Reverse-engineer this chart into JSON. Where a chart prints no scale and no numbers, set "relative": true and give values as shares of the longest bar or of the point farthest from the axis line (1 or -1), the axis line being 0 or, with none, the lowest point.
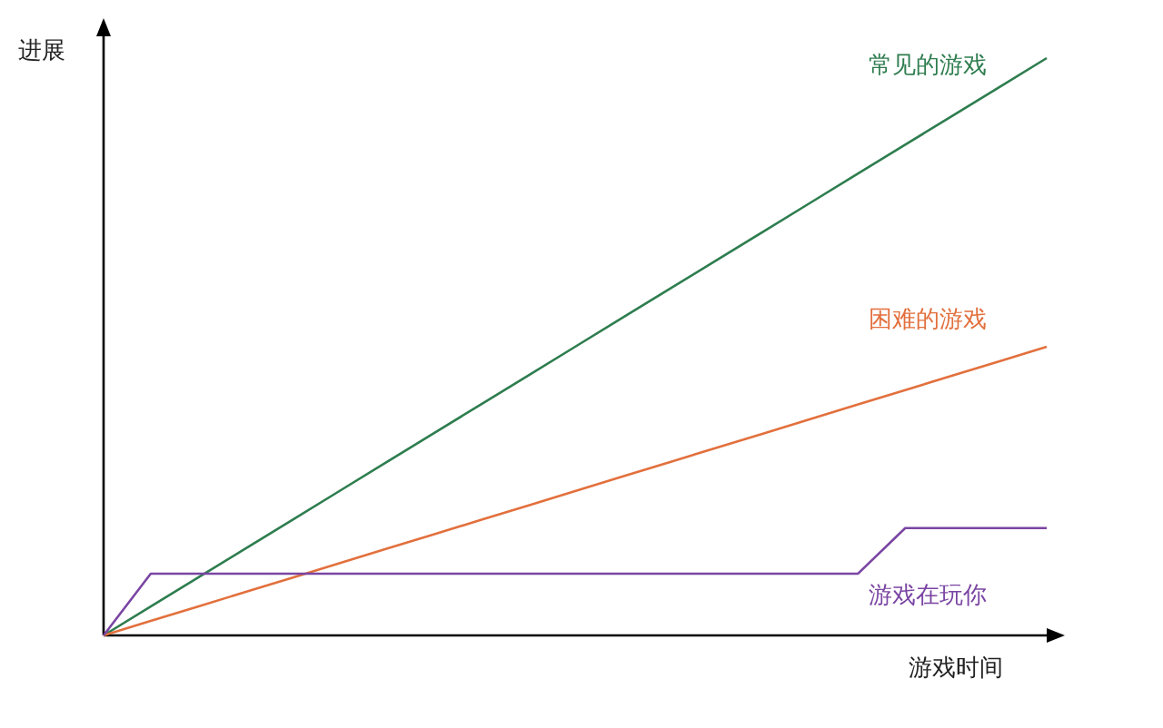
{
  "chart_data": {
    "type": "line",
    "relative": true,
    "xlabel": "游戏时间",
    "ylabel": "进展",
    "categories": [
      null,
      null,
      null,
      null,
      null,
      null,
      null,
      null,
      null,
      null,
      null,
      null,
      null,
      null,
      null,
      null,
      null,
      null,
      null,
      null,
      null
    ],
    "series": [
      {
        "name": "常见的游戏",
        "color": "#2e7d4f",
        "values": [
          0,
          0.05,
          0.1,
          0.15,
          0.2,
          0.25,
          0.3,
          0.35,
          0.4,
          0.45,
          0.5,
          0.55,
          0.6,
          0.65,
          0.7,
          0.75,
          0.8,
          0.85,
          0.9,
          0.95,
          1
        ]
      },
      {
        "name": "困难的游戏",
        "color": "#e2703d",
        "values": [
          0,
          0.025,
          0.05,
          0.075,
          0.1,
          0.125,
          0.15,
          0.175,
          0.2,
          0.225,
          0.25,
          0.275,
          0.3,
          0.325,
          0.35,
          0.375,
          0.4,
          0.425,
          0.45,
          0.475,
          0.5
        ]
      },
      {
        "name": "游戏在玩你",
        "color": "#7a45a3",
        "values": [
          0,
          0.107,
          0.107,
          0.107,
          0.107,
          0.107,
          0.107,
          0.107,
          0.107,
          0.107,
          0.107,
          0.107,
          0.107,
          0.107,
          0.107,
          0.107,
          0.107,
          0.186,
          0.186,
          0.186,
          0.186
        ]
      }
    ]
  }
}
